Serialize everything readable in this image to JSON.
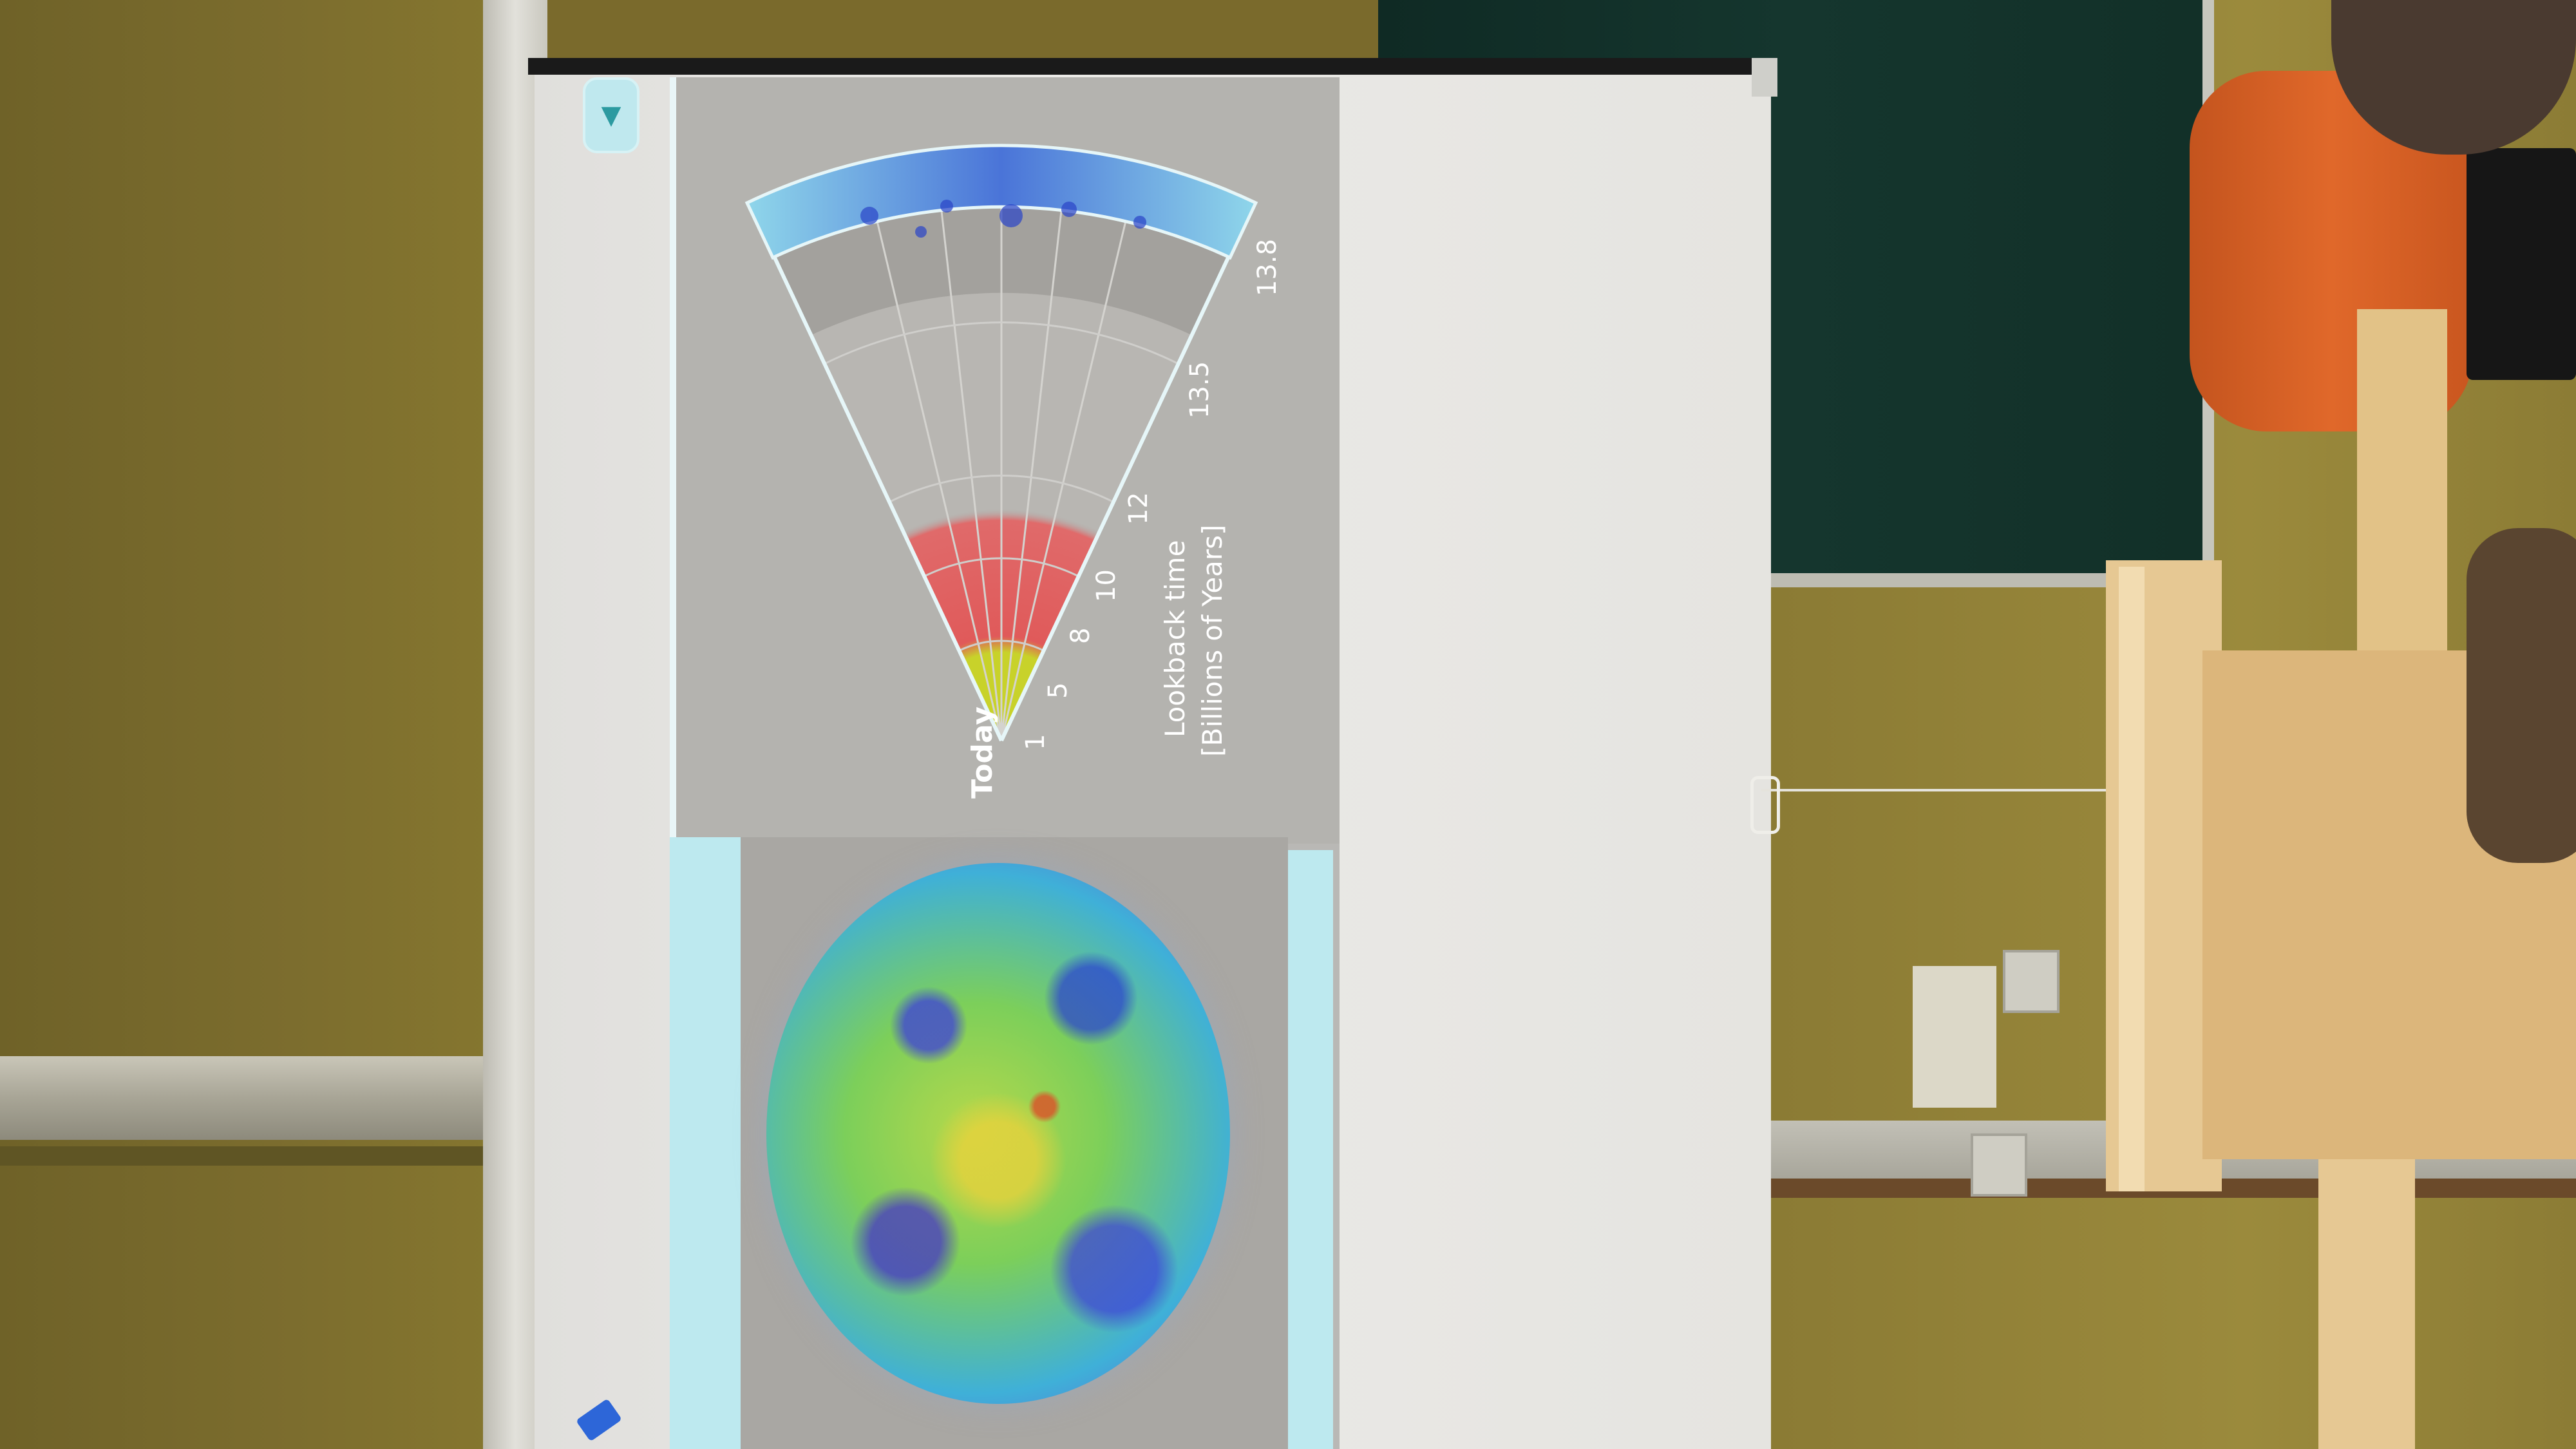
{
  "scene": {
    "description_hidden": ""
  },
  "slide": {
    "nav_icon": "triangle-down-icon",
    "today_label": "Today",
    "tick_labels": [
      "1",
      "5",
      "8",
      "10",
      "12",
      "13.5",
      "13.8"
    ],
    "axis_title_line1": "Lookback time",
    "axis_title_line2": "[Billions of Years]"
  },
  "colors": {
    "cmb_blue": "#4a74d8",
    "cmb_cyan": "#8fd6ea",
    "red_zone": "#e05a5a",
    "yellow_zone": "#c6d22e",
    "screen": "#e5e4e0"
  }
}
